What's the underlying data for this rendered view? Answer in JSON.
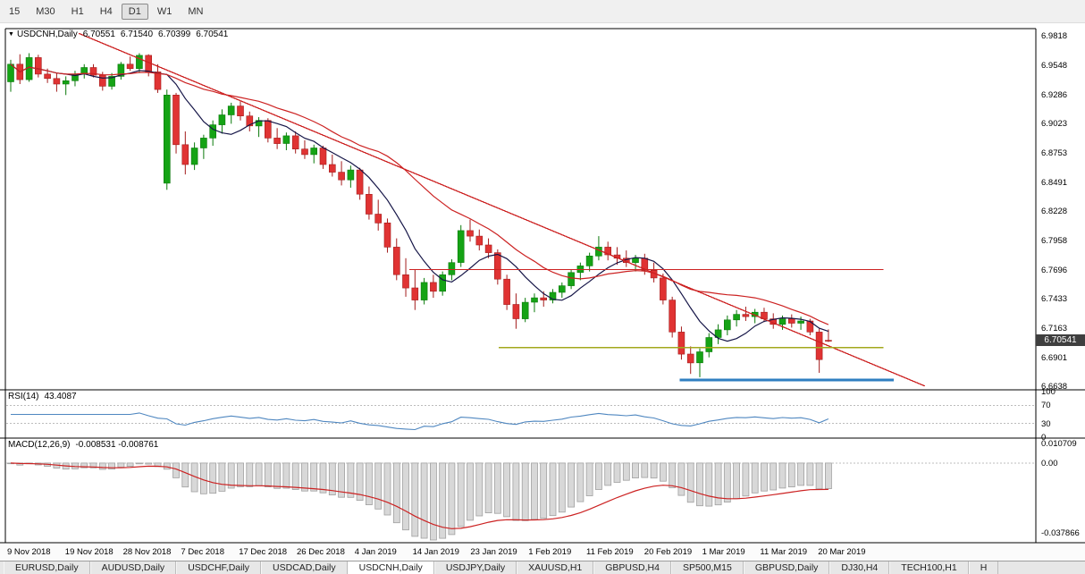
{
  "toolbar": {
    "timeframes": [
      {
        "label": "15",
        "active": false
      },
      {
        "label": "M30",
        "active": false
      },
      {
        "label": "H1",
        "active": false
      },
      {
        "label": "H4",
        "active": false
      },
      {
        "label": "D1",
        "active": true
      },
      {
        "label": "W1",
        "active": false
      },
      {
        "label": "MN",
        "active": false
      }
    ]
  },
  "header": {
    "symbol": "USDCNH,Daily",
    "open": "6.70551",
    "high": "6.71540",
    "low": "6.70399",
    "close": "6.70541"
  },
  "indicators": {
    "rsi": {
      "name": "RSI(14)",
      "value": "43.4087",
      "levels": [
        "100",
        "70",
        "30",
        "0"
      ]
    },
    "macd": {
      "name": "MACD(12,26,9)",
      "value": "-0.008531 -0.008761",
      "scale": [
        "0.010709",
        "0.00",
        "-0.037866"
      ]
    }
  },
  "price_scale": {
    "labels": [
      "6.9818",
      "6.9548",
      "6.9286",
      "6.9023",
      "6.8753",
      "6.8491",
      "6.8228",
      "6.7958",
      "6.7696",
      "6.7433",
      "6.7163",
      "6.6901",
      "6.6638"
    ],
    "current": "6.70541"
  },
  "date_axis": {
    "labels": [
      "9 Nov 2018",
      "19 Nov 2018",
      "28 Nov 2018",
      "7 Dec 2018",
      "17 Dec 2018",
      "26 Dec 2018",
      "4 Jan 2019",
      "14 Jan 2019",
      "23 Jan 2019",
      "1 Feb 2019",
      "11 Feb 2019",
      "20 Feb 2019",
      "1 Mar 2019",
      "11 Mar 2019",
      "20 Mar 2019"
    ]
  },
  "tabs": [
    {
      "label": "EURUSD,Daily",
      "active": false
    },
    {
      "label": "AUDUSD,Daily",
      "active": false
    },
    {
      "label": "USDCHF,Daily",
      "active": false
    },
    {
      "label": "USDCAD,Daily",
      "active": false
    },
    {
      "label": "USDCNH,Daily",
      "active": true
    },
    {
      "label": "USDJPY,Daily",
      "active": false
    },
    {
      "label": "XAUUSD,H1",
      "active": false
    },
    {
      "label": "GBPUSD,H4",
      "active": false
    },
    {
      "label": "SP500,M15",
      "active": false
    },
    {
      "label": "GBPUSD,Daily",
      "active": false
    },
    {
      "label": "DJ30,H4",
      "active": false
    },
    {
      "label": "TECH100,H1",
      "active": false
    },
    {
      "label": "H",
      "active": false
    }
  ],
  "chart_data": {
    "type": "candlestick",
    "symbol": "USDCNH",
    "timeframe": "Daily",
    "ylim": [
      6.6638,
      6.9818
    ],
    "candles": {
      "o": [
        6.94,
        6.956,
        6.942,
        6.962,
        6.947,
        6.943,
        6.938,
        6.941,
        6.947,
        6.953,
        6.946,
        6.936,
        6.945,
        6.956,
        6.952,
        6.964,
        6.949,
        6.848,
        6.928,
        6.883,
        6.865,
        6.88,
        6.889,
        6.901,
        6.91,
        6.918,
        6.909,
        6.9,
        6.905,
        6.889,
        6.884,
        6.891,
        6.879,
        6.874,
        6.88,
        6.865,
        6.858,
        6.851,
        6.86,
        6.838,
        6.82,
        6.812,
        6.79,
        6.765,
        6.753,
        6.742,
        6.758,
        6.75,
        6.765,
        6.776,
        6.805,
        6.8,
        6.792,
        6.785,
        6.761,
        6.738,
        6.725,
        6.74,
        6.744,
        6.742,
        6.749,
        6.755,
        6.767,
        6.773,
        6.782,
        6.79,
        6.783,
        6.78,
        6.776,
        6.78,
        6.769,
        6.762,
        6.742,
        6.713,
        6.693,
        6.685,
        6.695,
        6.708,
        6.715,
        6.724,
        6.729,
        6.727,
        6.731,
        6.725,
        6.72,
        6.725,
        6.721,
        6.723,
        6.713,
        6.70551
      ],
      "h": [
        6.96,
        6.965,
        6.966,
        6.9645,
        6.952,
        6.948,
        6.945,
        6.95,
        6.956,
        6.956,
        6.949,
        6.948,
        6.958,
        6.963,
        6.966,
        6.965,
        6.956,
        6.933,
        6.93,
        6.895,
        6.885,
        6.892,
        6.905,
        6.915,
        6.921,
        6.923,
        6.913,
        6.908,
        6.907,
        6.898,
        6.894,
        6.895,
        6.887,
        6.883,
        6.882,
        6.874,
        6.868,
        6.864,
        6.862,
        6.845,
        6.833,
        6.816,
        6.798,
        6.78,
        6.77,
        6.762,
        6.765,
        6.768,
        6.779,
        6.81,
        6.815,
        6.806,
        6.798,
        6.788,
        6.765,
        6.748,
        6.744,
        6.748,
        6.75,
        6.752,
        6.758,
        6.77,
        6.776,
        6.785,
        6.8,
        6.795,
        6.79,
        6.787,
        6.783,
        6.784,
        6.776,
        6.766,
        6.745,
        6.718,
        6.7,
        6.698,
        6.712,
        6.72,
        6.728,
        6.733,
        6.736,
        6.734,
        6.735,
        6.73,
        6.728,
        6.729,
        6.727,
        6.725,
        6.716,
        6.7154
      ],
      "l": [
        6.931,
        6.938,
        6.94,
        6.944,
        6.939,
        6.931,
        6.928,
        6.936,
        6.943,
        6.944,
        6.932,
        6.933,
        6.942,
        6.95,
        6.948,
        6.945,
        6.93,
        6.842,
        6.875,
        6.856,
        6.86,
        6.87,
        6.882,
        6.893,
        6.902,
        6.905,
        6.895,
        6.89,
        6.885,
        6.879,
        6.878,
        6.875,
        6.87,
        6.866,
        6.861,
        6.854,
        6.846,
        6.844,
        6.833,
        6.815,
        6.805,
        6.785,
        6.76,
        6.745,
        6.733,
        6.738,
        6.744,
        6.746,
        6.76,
        6.772,
        6.795,
        6.787,
        6.78,
        6.756,
        6.733,
        6.716,
        6.722,
        6.731,
        6.736,
        6.739,
        6.744,
        6.752,
        6.76,
        6.768,
        6.778,
        6.778,
        6.774,
        6.772,
        6.768,
        6.765,
        6.758,
        6.738,
        6.708,
        6.688,
        6.675,
        6.672,
        6.69,
        6.702,
        6.71,
        6.718,
        6.723,
        6.721,
        6.722,
        6.716,
        6.715,
        6.717,
        6.715,
        6.71,
        6.676,
        6.70399
      ],
      "c": [
        6.956,
        6.942,
        6.962,
        6.947,
        6.943,
        6.938,
        6.941,
        6.947,
        6.953,
        6.946,
        6.936,
        6.945,
        6.956,
        6.952,
        6.964,
        6.949,
        6.933,
        6.928,
        6.883,
        6.865,
        6.88,
        6.889,
        6.901,
        6.91,
        6.918,
        6.909,
        6.9,
        6.905,
        6.889,
        6.884,
        6.891,
        6.879,
        6.874,
        6.88,
        6.865,
        6.858,
        6.851,
        6.86,
        6.838,
        6.82,
        6.812,
        6.79,
        6.765,
        6.753,
        6.742,
        6.758,
        6.75,
        6.765,
        6.776,
        6.805,
        6.8,
        6.792,
        6.785,
        6.761,
        6.738,
        6.725,
        6.74,
        6.744,
        6.742,
        6.749,
        6.755,
        6.767,
        6.773,
        6.782,
        6.79,
        6.783,
        6.78,
        6.776,
        6.78,
        6.769,
        6.762,
        6.742,
        6.713,
        6.693,
        6.685,
        6.695,
        6.708,
        6.715,
        6.724,
        6.729,
        6.727,
        6.731,
        6.725,
        6.72,
        6.725,
        6.721,
        6.723,
        6.713,
        6.688,
        6.70541
      ]
    },
    "overlays": {
      "ma_fast_period": 7,
      "ma_slow_period": 21,
      "trendline": {
        "from_bar": 7.4,
        "from_price": 6.984,
        "to_bar": 99.5,
        "to_price": 6.664
      },
      "hlines": [
        {
          "price": 6.7696,
          "color": "#cc2222",
          "from_bar": 43.4,
          "to_bar": 95.0,
          "width": 1.2
        },
        {
          "price": 6.699,
          "color": "#a3a81c",
          "from_bar": 53.1,
          "to_bar": 95.0,
          "width": 1.6
        },
        {
          "price": 6.6695,
          "color": "#2f7fc1",
          "from_bar": 72.8,
          "to_bar": 96.1,
          "width": 3
        }
      ]
    },
    "colors": {
      "up": "#15a315",
      "up_edge": "#0b7a0b",
      "down": "#e03333",
      "down_edge": "#a31c1c",
      "ma_fast": "#151547",
      "ma_slow": "#cc2222",
      "trendline": "#cc2222",
      "rsi": "#4f87c0",
      "macd_hist": "#d8d8d8",
      "macd_hist_edge": "#a0a0a0",
      "macd_signal": "#cc2222",
      "badge_bg": "#3f3f3f"
    }
  }
}
